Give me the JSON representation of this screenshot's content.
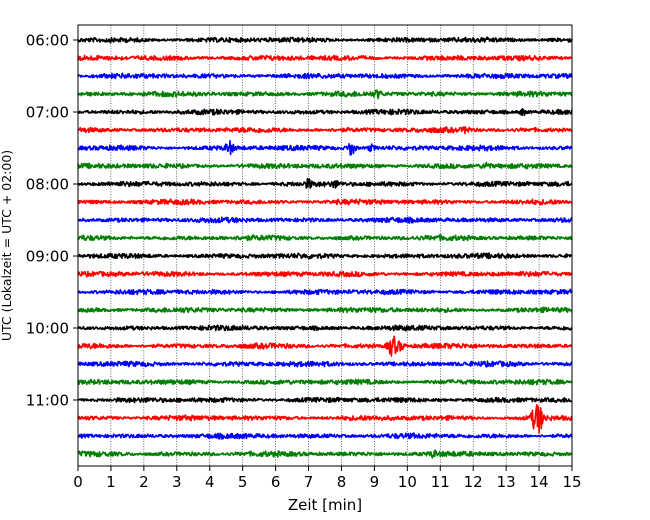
{
  "chart_data": {
    "type": "line",
    "xlabel": "Zeit  [min]",
    "ylabel": "UTC (Lokalzeit = UTC + 02:00)",
    "xlim": [
      0,
      15
    ],
    "x_ticks": [
      "0",
      "1",
      "2",
      "3",
      "4",
      "5",
      "6",
      "7",
      "8",
      "9",
      "10",
      "11",
      "12",
      "13",
      "14",
      "15"
    ],
    "y_tick_labels": [
      "06:00",
      "07:00",
      "08:00",
      "09:00",
      "10:00",
      "11:00"
    ],
    "grid": "vertical dotted lines at each minute",
    "trace_colors": [
      "#000000",
      "#ff0000",
      "#0000ff",
      "#008000"
    ],
    "trace_interval_minutes": 15,
    "traces": [
      {
        "start": "06:00",
        "color": "#000000",
        "events": []
      },
      {
        "start": "06:15",
        "color": "#ff0000",
        "events": []
      },
      {
        "start": "06:30",
        "color": "#0000ff",
        "events": []
      },
      {
        "start": "06:45",
        "color": "#008000",
        "events": [
          {
            "t": 9.1,
            "amp": 0.35
          }
        ]
      },
      {
        "start": "07:00",
        "color": "#000000",
        "events": [
          {
            "t": 13.5,
            "amp": 0.3
          }
        ]
      },
      {
        "start": "07:15",
        "color": "#ff0000",
        "events": [
          {
            "t": 11.8,
            "amp": 0.3
          }
        ]
      },
      {
        "start": "07:30",
        "color": "#0000ff",
        "events": [
          {
            "t": 4.6,
            "amp": 0.6
          },
          {
            "t": 8.3,
            "amp": 0.75
          },
          {
            "t": 8.9,
            "amp": 0.3
          }
        ]
      },
      {
        "start": "07:45",
        "color": "#008000",
        "events": [
          {
            "t": 12.4,
            "amp": 0.35
          }
        ]
      },
      {
        "start": "08:00",
        "color": "#000000",
        "events": [
          {
            "t": 7.0,
            "amp": 0.35
          },
          {
            "t": 7.8,
            "amp": 0.3
          }
        ]
      },
      {
        "start": "08:15",
        "color": "#ff0000",
        "events": []
      },
      {
        "start": "08:30",
        "color": "#0000ff",
        "events": []
      },
      {
        "start": "08:45",
        "color": "#008000",
        "events": []
      },
      {
        "start": "09:00",
        "color": "#000000",
        "events": []
      },
      {
        "start": "09:15",
        "color": "#ff0000",
        "events": []
      },
      {
        "start": "09:30",
        "color": "#0000ff",
        "events": []
      },
      {
        "start": "09:45",
        "color": "#008000",
        "events": []
      },
      {
        "start": "10:00",
        "color": "#000000",
        "events": []
      },
      {
        "start": "10:15",
        "color": "#ff0000",
        "events": [
          {
            "t": 9.55,
            "amp": 1.1
          },
          {
            "t": 9.8,
            "amp": 0.4
          }
        ]
      },
      {
        "start": "10:30",
        "color": "#0000ff",
        "events": []
      },
      {
        "start": "10:45",
        "color": "#008000",
        "events": []
      },
      {
        "start": "11:00",
        "color": "#000000",
        "events": []
      },
      {
        "start": "11:15",
        "color": "#ff0000",
        "events": [
          {
            "t": 13.95,
            "amp": 1.6
          }
        ]
      },
      {
        "start": "11:30",
        "color": "#0000ff",
        "events": []
      },
      {
        "start": "11:45",
        "color": "#008000",
        "events": [
          {
            "t": 10.8,
            "amp": 0.25
          }
        ]
      }
    ]
  }
}
